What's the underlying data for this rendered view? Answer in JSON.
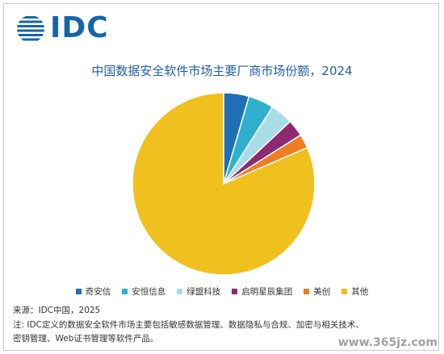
{
  "logo_text": "IDC",
  "chart_data": {
    "type": "pie",
    "title": "中国数据安全软件市场主要厂商市场份额，2024",
    "categories": [
      "奇安信",
      "安恒信息",
      "绿盟科技",
      "启明星辰集团",
      "美创",
      "其他"
    ],
    "values": [
      4.5,
      4.5,
      4.0,
      3.0,
      2.5,
      81.5
    ],
    "colors": [
      "#1f6fb5",
      "#2fb0cf",
      "#a8dde8",
      "#8e2a72",
      "#ef7d22",
      "#f0c01e"
    ],
    "legend_position": "bottom"
  },
  "source": "来源：IDC中国，2025",
  "note": "注: IDC定义的数据安全软件市场主要包括敏感数据管理、数据隐私与合规、加密与相关技术、密钥管理、Web证书管理等软件产品。",
  "watermark": "www.365jz.com"
}
